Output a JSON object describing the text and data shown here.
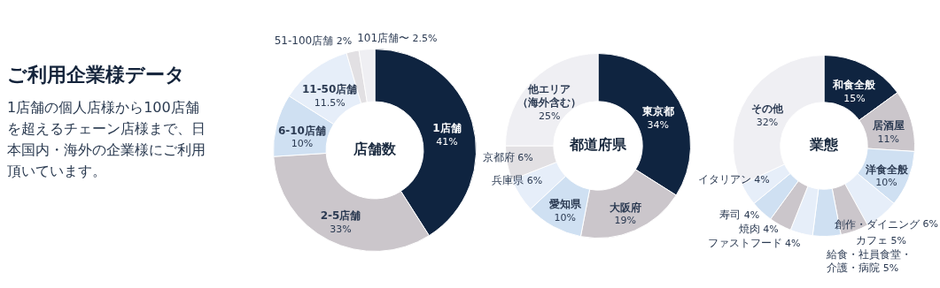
{
  "chart_data": [
    {
      "type": "other",
      "title": "ご利用企業様データ",
      "annotations": [
        "1店舗の個人店様から100店舗を超えるチェーン店様まで、日本国内・海外の企業様にご利用頂いています。"
      ]
    },
    {
      "type": "donut",
      "title": "店舗数",
      "categories": [
        "1店舗",
        "2-5店舗",
        "6-10店舗",
        "11-50店舗",
        "51-100店舗",
        "101店舗〜"
      ],
      "values": [
        41,
        33,
        10,
        11.5,
        2,
        2.5
      ],
      "value_labels": [
        "41%",
        "33%",
        "10%",
        "11.5%",
        "2%",
        "2.5%"
      ],
      "colors": [
        "#0f2440",
        "#cbc6cb",
        "#cfe0f2",
        "#e6eef9",
        "#e2e0e3",
        "#efeff3"
      ]
    },
    {
      "type": "donut",
      "title": "都道府県",
      "categories": [
        "東京都",
        "大阪府",
        "愛知県",
        "兵庫県",
        "京都府",
        "他エリア（海外含む）"
      ],
      "values": [
        34,
        19,
        10,
        6,
        6,
        25
      ],
      "value_labels": [
        "34%",
        "19%",
        "10%",
        "6%",
        "6%",
        "25%"
      ],
      "colors": [
        "#0f2440",
        "#cbc6cb",
        "#cfe0f2",
        "#e6eef9",
        "#e2e0e3",
        "#efeff3"
      ]
    },
    {
      "type": "donut",
      "title": "業態",
      "categories": [
        "和食全般",
        "居酒屋",
        "洋食全般",
        "創作・ダイニング",
        "カフェ",
        "給食・社員食堂・介護・病院",
        "ファストフード",
        "焼肉",
        "寿司",
        "イタリアン",
        "その他"
      ],
      "values": [
        15,
        11,
        10,
        6,
        5,
        5,
        4,
        4,
        4,
        4,
        32
      ],
      "value_labels": [
        "15%",
        "11%",
        "10%",
        "6%",
        "5%",
        "5%",
        "4%",
        "4%",
        "4%",
        "4%",
        "32%"
      ],
      "colors": [
        "#0f2440",
        "#cbc6cb",
        "#cfe0f2",
        "#e6eef9",
        "#cbc6cb",
        "#cfe0f2",
        "#e6eef9",
        "#cbc6cb",
        "#cfe0f2",
        "#e6eef9",
        "#efeff3"
      ]
    }
  ]
}
